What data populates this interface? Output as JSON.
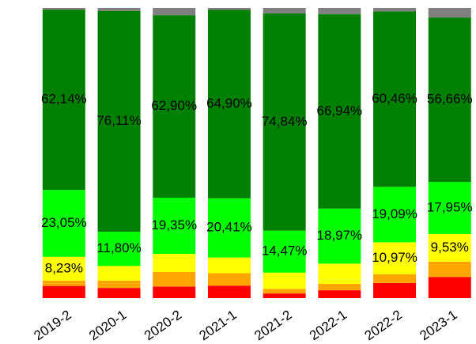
{
  "chart_data": {
    "type": "stacked_bar_100",
    "categories": [
      "2019-2",
      "2020-1",
      "2020-2",
      "2021-1",
      "2021-2",
      "2022-1",
      "2022-2",
      "2023-1"
    ],
    "ylim": [
      0,
      100
    ],
    "series": [
      {
        "color": "#ff0000",
        "values": [
          4.2,
          3.5,
          4,
          4.3,
          1.6,
          2.7,
          5.2,
          7.3
        ]
      },
      {
        "color": "#ffa500",
        "values": [
          1.8,
          2.5,
          5,
          4.3,
          1.6,
          2.2,
          3.08,
          5.26
        ]
      },
      {
        "color": "#ffff00",
        "values": [
          8.23,
          5.09,
          6.25,
          5.4,
          5.59,
          6.99,
          10.97,
          9.53
        ],
        "value_labels": [
          "8,23%",
          null,
          null,
          null,
          null,
          null,
          "10,97%",
          "9,53%"
        ]
      },
      {
        "color": "#00ff00",
        "values": [
          23.05,
          11.8,
          19.35,
          20.41,
          14.47,
          18.97,
          19.09,
          17.95
        ],
        "value_labels": [
          "23,05%",
          "11,80%",
          "19,35%",
          "20,41%",
          "14,47%",
          "18,97%",
          "19,09%",
          "17,95%"
        ]
      },
      {
        "color": "#008000",
        "values": [
          62.14,
          76.11,
          62.9,
          64.9,
          74.84,
          66.94,
          60.46,
          56.66
        ],
        "value_labels": [
          "62,14%",
          "76,11%",
          "62,90%",
          "64,90%",
          "74,84%",
          "66,94%",
          "60,46%",
          "56,66%"
        ]
      },
      {
        "color": "#808080",
        "values": [
          0.58,
          1,
          2.5,
          0.7,
          1.9,
          2.2,
          1.2,
          3.3
        ]
      }
    ]
  }
}
